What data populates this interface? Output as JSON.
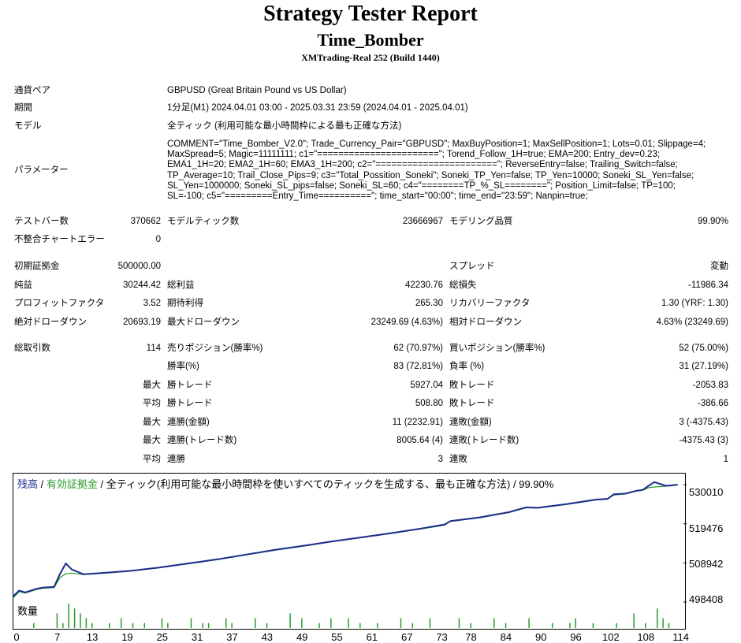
{
  "header": {
    "title": "Strategy Tester Report",
    "ea_name": "Time_Bomber",
    "server": "XMTrading-Real 252 (Build 1440)"
  },
  "info": {
    "pair_label": "通貨ペア",
    "pair_value": "GBPUSD (Great Britain Pound vs US Dollar)",
    "period_label": "期間",
    "period_value": "1分足(M1) 2024.04.01 03:00 - 2025.03.31 23:59 (2024.04.01 - 2025.04.01)",
    "model_label": "モデル",
    "model_value": "全ティック (利用可能な最小時間枠による最も正確な方法)",
    "params_label": "パラメーター",
    "params_value": "COMMENT=\"Time_Bomber_V2.0\"; Trade_Currency_Pair=\"GBPUSD\"; MaxBuyPosition=1; MaxSellPosition=1; Lots=0.01; Slippage=4;\nMaxSpread=5; Magic=11111111; c1=\"=======================\"; Torend_Follow_1H=true; EMA=200; Entry_dev=0.23;\nEMA1_1H=20; EMA2_1H=60; EMA3_1H=200; c2=\"=======================\"; ReverseEntry=false; Trailing_Switch=false;\nTP_Average=10; Trail_Close_Pips=9; c3=\"Total_Possition_Soneki\"; Soneki_TP_Yen=false; TP_Yen=10000; Soneki_SL_Yen=false;\nSL_Yen=1000000; Soneki_SL_pips=false; Soneki_SL=60; c4=\"========TP_%_SL========\"; Position_Limit=false; TP=100;\nSL=-100; c5=\"=========Entry_Time==========\"; time_start=\"00:00\"; time_end=\"23:59\"; Nanpin=true;"
  },
  "stats": {
    "bars_label": "テストバー数",
    "bars_value": "370662",
    "ticks_label": "モデルティック数",
    "ticks_value": "23666967",
    "quality_label": "モデリング品質",
    "quality_value": "99.90%",
    "mismatch_label": "不整合チャートエラー",
    "mismatch_value": "0",
    "deposit_label": "初期証拠金",
    "deposit_value": "500000.00",
    "spread_label": "スプレッド",
    "spread_value": "変動",
    "net_label": "純益",
    "net_value": "30244.42",
    "gross_profit_label": "総利益",
    "gross_profit_value": "42230.76",
    "gross_loss_label": "総損失",
    "gross_loss_value": "-11986.34",
    "pf_label": "プロフィットファクタ",
    "pf_value": "3.52",
    "exp_label": "期待利得",
    "exp_value": "265.30",
    "rf_label": "リカバリーファクタ",
    "rf_value": "1.30 (YRF: 1.30)",
    "abs_dd_label": "絶対ドローダウン",
    "abs_dd_value": "20693.19",
    "max_dd_label": "最大ドローダウン",
    "max_dd_value": "23249.69 (4.63%)",
    "rel_dd_label": "相対ドローダウン",
    "rel_dd_value": "4.63% (23249.69)",
    "trades_label": "総取引数",
    "trades_value": "114",
    "short_label": "売りポジション(勝率%)",
    "short_value": "62 (70.97%)",
    "long_label": "買いポジション(勝率%)",
    "long_value": "52 (75.00%)",
    "winrate_label": "勝率(%)",
    "winrate_value": "83 (72.81%)",
    "lossrate_label": "負率 (%)",
    "lossrate_value": "31 (27.19%)",
    "max_label": "最大",
    "avg_label": "平均",
    "win_trade_label": "勝トレード",
    "loss_trade_label": "敗トレード",
    "max_win_value": "5927.04",
    "max_loss_value": "-2053.83",
    "avg_win_value": "508.80",
    "avg_loss_value": "-386.66",
    "cons_win_amt_label": "連勝(金額)",
    "cons_win_amt_value": "11 (2232.91)",
    "cons_loss_amt_label": "連敗(金額)",
    "cons_loss_amt_value": "3 (-4375.43)",
    "cons_win_cnt_label": "連勝(トレード数)",
    "cons_win_cnt_value": "8005.64 (4)",
    "cons_loss_cnt_label": "連敗(トレード数)",
    "cons_loss_cnt_value": "-4375.43 (3)",
    "avg_cons_win_label": "連勝",
    "avg_cons_win_value": "3",
    "avg_cons_loss_label": "連敗",
    "avg_cons_loss_value": "1"
  },
  "chart_legend": {
    "balance": "残高",
    "sep1": " / ",
    "equity": "有効証拠金",
    "rest": " / 全ティック(利用可能な最小時間枠を使いすべてのティックを生成する、最も正確な方法) / 99.90%",
    "volume": "数量"
  },
  "colors": {
    "balance": "#1e2e8c",
    "equity": "#2a9a2a",
    "volume": "#2a9a2a"
  },
  "chart_data": {
    "type": "line",
    "ylim": [
      498408,
      533000
    ],
    "ytick_labels": [
      "530010",
      "519476",
      "508942",
      "498408"
    ],
    "yticks": [
      530010,
      519476,
      508942,
      498408
    ],
    "xticks": [
      "0",
      "7",
      "13",
      "19",
      "25",
      "31",
      "37",
      "43",
      "49",
      "55",
      "61",
      "67",
      "73",
      "78",
      "84",
      "90",
      "96",
      "102",
      "108",
      "114"
    ],
    "series": [
      {
        "name": "残高",
        "x": [
          0,
          1,
          2,
          3,
          4,
          5,
          6,
          7,
          8,
          9,
          10,
          12,
          15,
          20,
          25,
          30,
          35,
          40,
          45,
          50,
          55,
          60,
          65,
          70,
          74,
          75,
          80,
          85,
          88,
          90,
          95,
          100,
          102,
          103,
          105,
          107,
          108,
          109,
          110,
          112,
          114
        ],
        "values": [
          500000,
          501500,
          501000,
          501500,
          502000,
          502300,
          502400,
          502500,
          506000,
          508800,
          507200,
          505900,
          506200,
          506800,
          507700,
          508800,
          509900,
          511200,
          512500,
          513600,
          514800,
          515900,
          517000,
          518200,
          519300,
          520200,
          521200,
          522600,
          523900,
          523800,
          524800,
          526000,
          526200,
          527400,
          527600,
          528400,
          528600,
          529700,
          530700,
          529700,
          530000
        ]
      },
      {
        "name": "有効証拠金",
        "x": [
          0,
          1,
          2,
          3,
          4,
          5,
          6,
          7,
          8,
          9,
          10,
          12,
          15,
          20,
          25,
          30,
          35,
          40,
          45,
          50,
          55,
          60,
          65,
          70,
          74,
          75,
          80,
          85,
          88,
          90,
          95,
          100,
          102,
          103,
          105,
          107,
          108,
          109,
          110,
          112,
          114
        ],
        "values": [
          499600,
          501200,
          500800,
          501300,
          501800,
          502100,
          502200,
          502300,
          505000,
          506000,
          506200,
          505800,
          506100,
          506700,
          507600,
          508700,
          509800,
          511100,
          512400,
          513500,
          514700,
          515800,
          516900,
          518100,
          519100,
          520100,
          521100,
          522500,
          523800,
          523700,
          524700,
          525900,
          526100,
          527200,
          527500,
          528300,
          528500,
          529200,
          529400,
          529600,
          529900
        ]
      }
    ],
    "volume": [
      0,
      0,
      0,
      1,
      0,
      0,
      0,
      3,
      1,
      5,
      4,
      3,
      2,
      1,
      0,
      0,
      1,
      0,
      2,
      0,
      1,
      0,
      1,
      0,
      0,
      2,
      1,
      0,
      0,
      0,
      2,
      0,
      1,
      1,
      0,
      0,
      2,
      1,
      0,
      0,
      0,
      2,
      0,
      1,
      0,
      0,
      0,
      3,
      0,
      2,
      0,
      0,
      1,
      0,
      2,
      0,
      0,
      2,
      0,
      1,
      0,
      0,
      1,
      0,
      0,
      0,
      2,
      0,
      1,
      0,
      0,
      2,
      0,
      0,
      0,
      0,
      2,
      0,
      1,
      0,
      0,
      0,
      2,
      0,
      1,
      0,
      0,
      0,
      2,
      0,
      0,
      0,
      1,
      0,
      0,
      1,
      2,
      0,
      0,
      1,
      0,
      0,
      0,
      1,
      0,
      0,
      3,
      0,
      1,
      0,
      4,
      2,
      1,
      0,
      0
    ]
  }
}
